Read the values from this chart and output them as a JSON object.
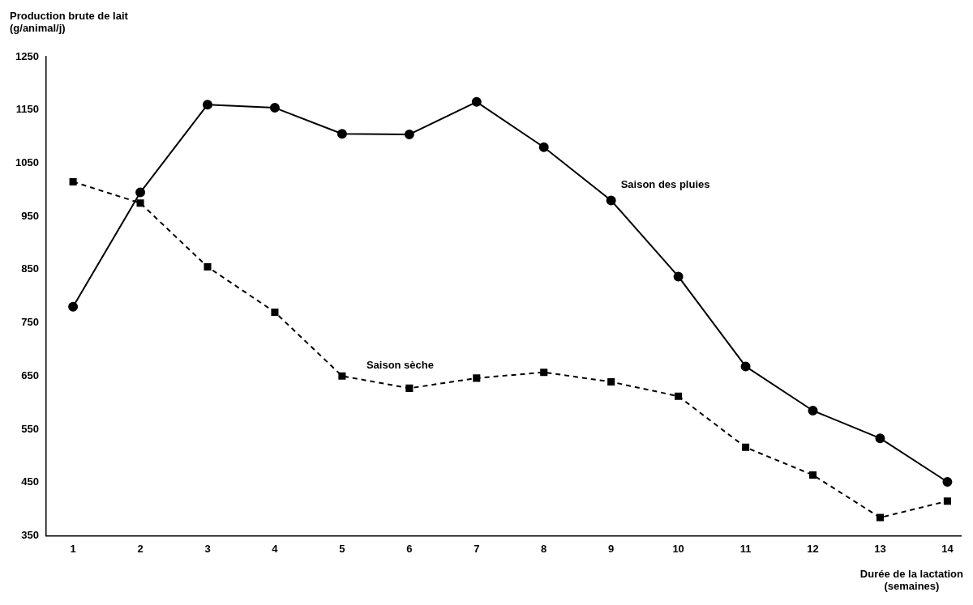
{
  "chart_data": {
    "type": "line",
    "x": [
      1,
      2,
      3,
      4,
      5,
      6,
      7,
      8,
      9,
      10,
      11,
      12,
      13,
      14
    ],
    "series": [
      {
        "name": "Saison des pluies",
        "color": "#000000",
        "marker": "circle",
        "line_style": "solid",
        "values": [
          780,
          995,
          1160,
          1154,
          1105,
          1104,
          1165,
          1080,
          980,
          837,
          668,
          585,
          533,
          451
        ]
      },
      {
        "name": "Saison sèche",
        "color": "#000000",
        "marker": "square",
        "line_style": "dashed",
        "values": [
          1015,
          975,
          855,
          770,
          650,
          627,
          646,
          657,
          639,
          612,
          516,
          464,
          384,
          415
        ]
      }
    ],
    "ylabel": "Production brute de lait\n(g/animal/j)",
    "xlabel": "Durée de la lactation\n(semaines)",
    "xlim": [
      0.6,
      14.2
    ],
    "xticks": [
      1,
      2,
      3,
      4,
      5,
      6,
      7,
      8,
      9,
      10,
      11,
      12,
      13,
      14
    ],
    "ylim": [
      350,
      1250
    ],
    "yticks": [
      350,
      450,
      550,
      650,
      750,
      850,
      950,
      1050,
      1150,
      1250
    ],
    "grid": false,
    "legend": false
  }
}
